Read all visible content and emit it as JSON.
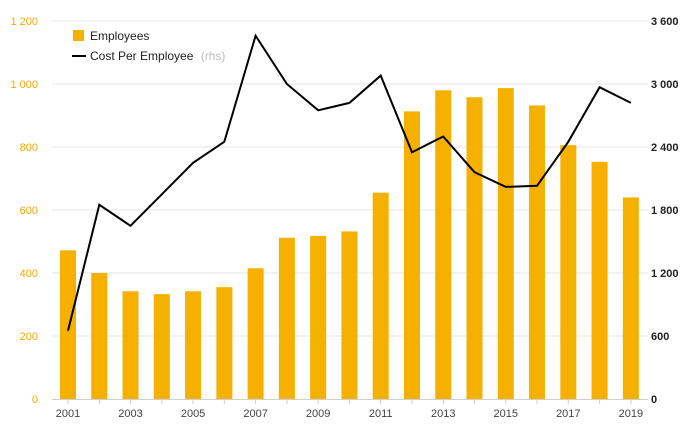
{
  "chart_data": {
    "type": "bar+line",
    "title": "",
    "x": [
      2001,
      2002,
      2003,
      2004,
      2005,
      2006,
      2007,
      2008,
      2009,
      2010,
      2011,
      2012,
      2013,
      2014,
      2015,
      2016,
      2017,
      2018,
      2019
    ],
    "x_tick_labels": [
      "2001",
      "2003",
      "2005",
      "2007",
      "2009",
      "2011",
      "2013",
      "2015",
      "2017",
      "2019"
    ],
    "series": [
      {
        "name": "Employees",
        "type": "bar",
        "axis": "left",
        "color": "#f5b000",
        "values": [
          472,
          400,
          342,
          333,
          342,
          355,
          415,
          512,
          518,
          532,
          655,
          913,
          980,
          958,
          987,
          932,
          806,
          753,
          640
        ]
      },
      {
        "name": "Cost Per Employee",
        "name_suffix": "(rhs)",
        "type": "line",
        "axis": "right",
        "color": "#000000",
        "values": [
          650,
          1850,
          1650,
          1950,
          2250,
          2450,
          3460,
          3000,
          2750,
          2820,
          3080,
          2350,
          2500,
          2160,
          2020,
          2030,
          2450,
          2970,
          2820
        ]
      }
    ],
    "y_left": {
      "ylim": [
        0,
        1200
      ],
      "tick_values": [
        0,
        200,
        400,
        600,
        800,
        1000,
        1200
      ],
      "tick_labels": [
        "0",
        "200",
        "400",
        "600",
        "800",
        "1 000",
        "1 200"
      ],
      "color": "#f5a800"
    },
    "y_right": {
      "ylim": [
        0,
        3600
      ],
      "tick_values": [
        0,
        600,
        1200,
        1800,
        2400,
        3000,
        3600
      ],
      "tick_labels": [
        "0",
        "600",
        "1 200",
        "1 800",
        "2 400",
        "3 000",
        "3 600"
      ],
      "color": "#222222"
    },
    "grid": true,
    "legend": {
      "placement": "top-left"
    }
  }
}
